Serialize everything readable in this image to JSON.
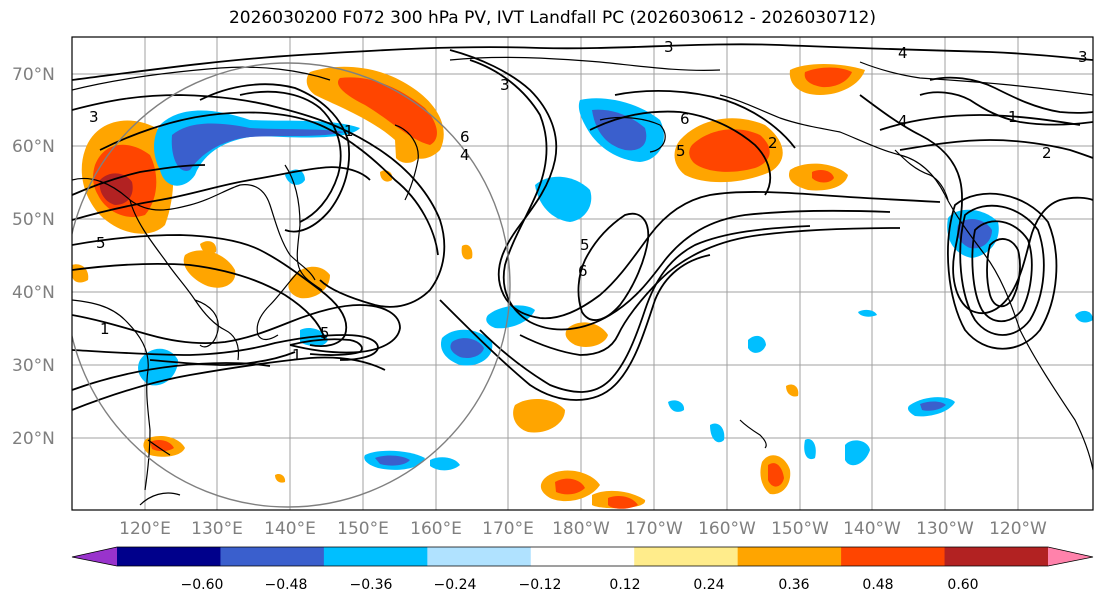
{
  "title": "2026030200 F072 300 hPa PV, IVT Landfall PC (2026030612 - 2026030712)",
  "lat_labels": [
    "70°N",
    "60°N",
    "50°N",
    "40°N",
    "30°N",
    "20°N"
  ],
  "lon_labels": [
    "120°E",
    "130°E",
    "140°E",
    "150°E",
    "160°E",
    "170°E",
    "180°W",
    "170°W",
    "160°W",
    "150°W",
    "140°W",
    "130°W",
    "120°W"
  ],
  "contour_labels": [
    "3",
    "4",
    "3",
    "4",
    "1",
    "2",
    "1",
    "3",
    "6",
    "5",
    "6",
    "5",
    "1",
    "5",
    "1",
    "3",
    "5",
    "4",
    "6",
    "2"
  ],
  "colorbar": {
    "colors": [
      "#9933cc",
      "#00008b",
      "#3a5fcd",
      "#00bfff",
      "#b0e2ff",
      "#ffffff",
      "#ffec8b",
      "#ffa500",
      "#ff4500",
      "#b22222",
      "#ff82ab"
    ],
    "tick_labels": [
      "−0.60",
      "−0.48",
      "−0.36",
      "−0.24",
      "−0.12",
      "0.12",
      "0.24",
      "0.36",
      "0.48",
      "0.60"
    ]
  }
}
